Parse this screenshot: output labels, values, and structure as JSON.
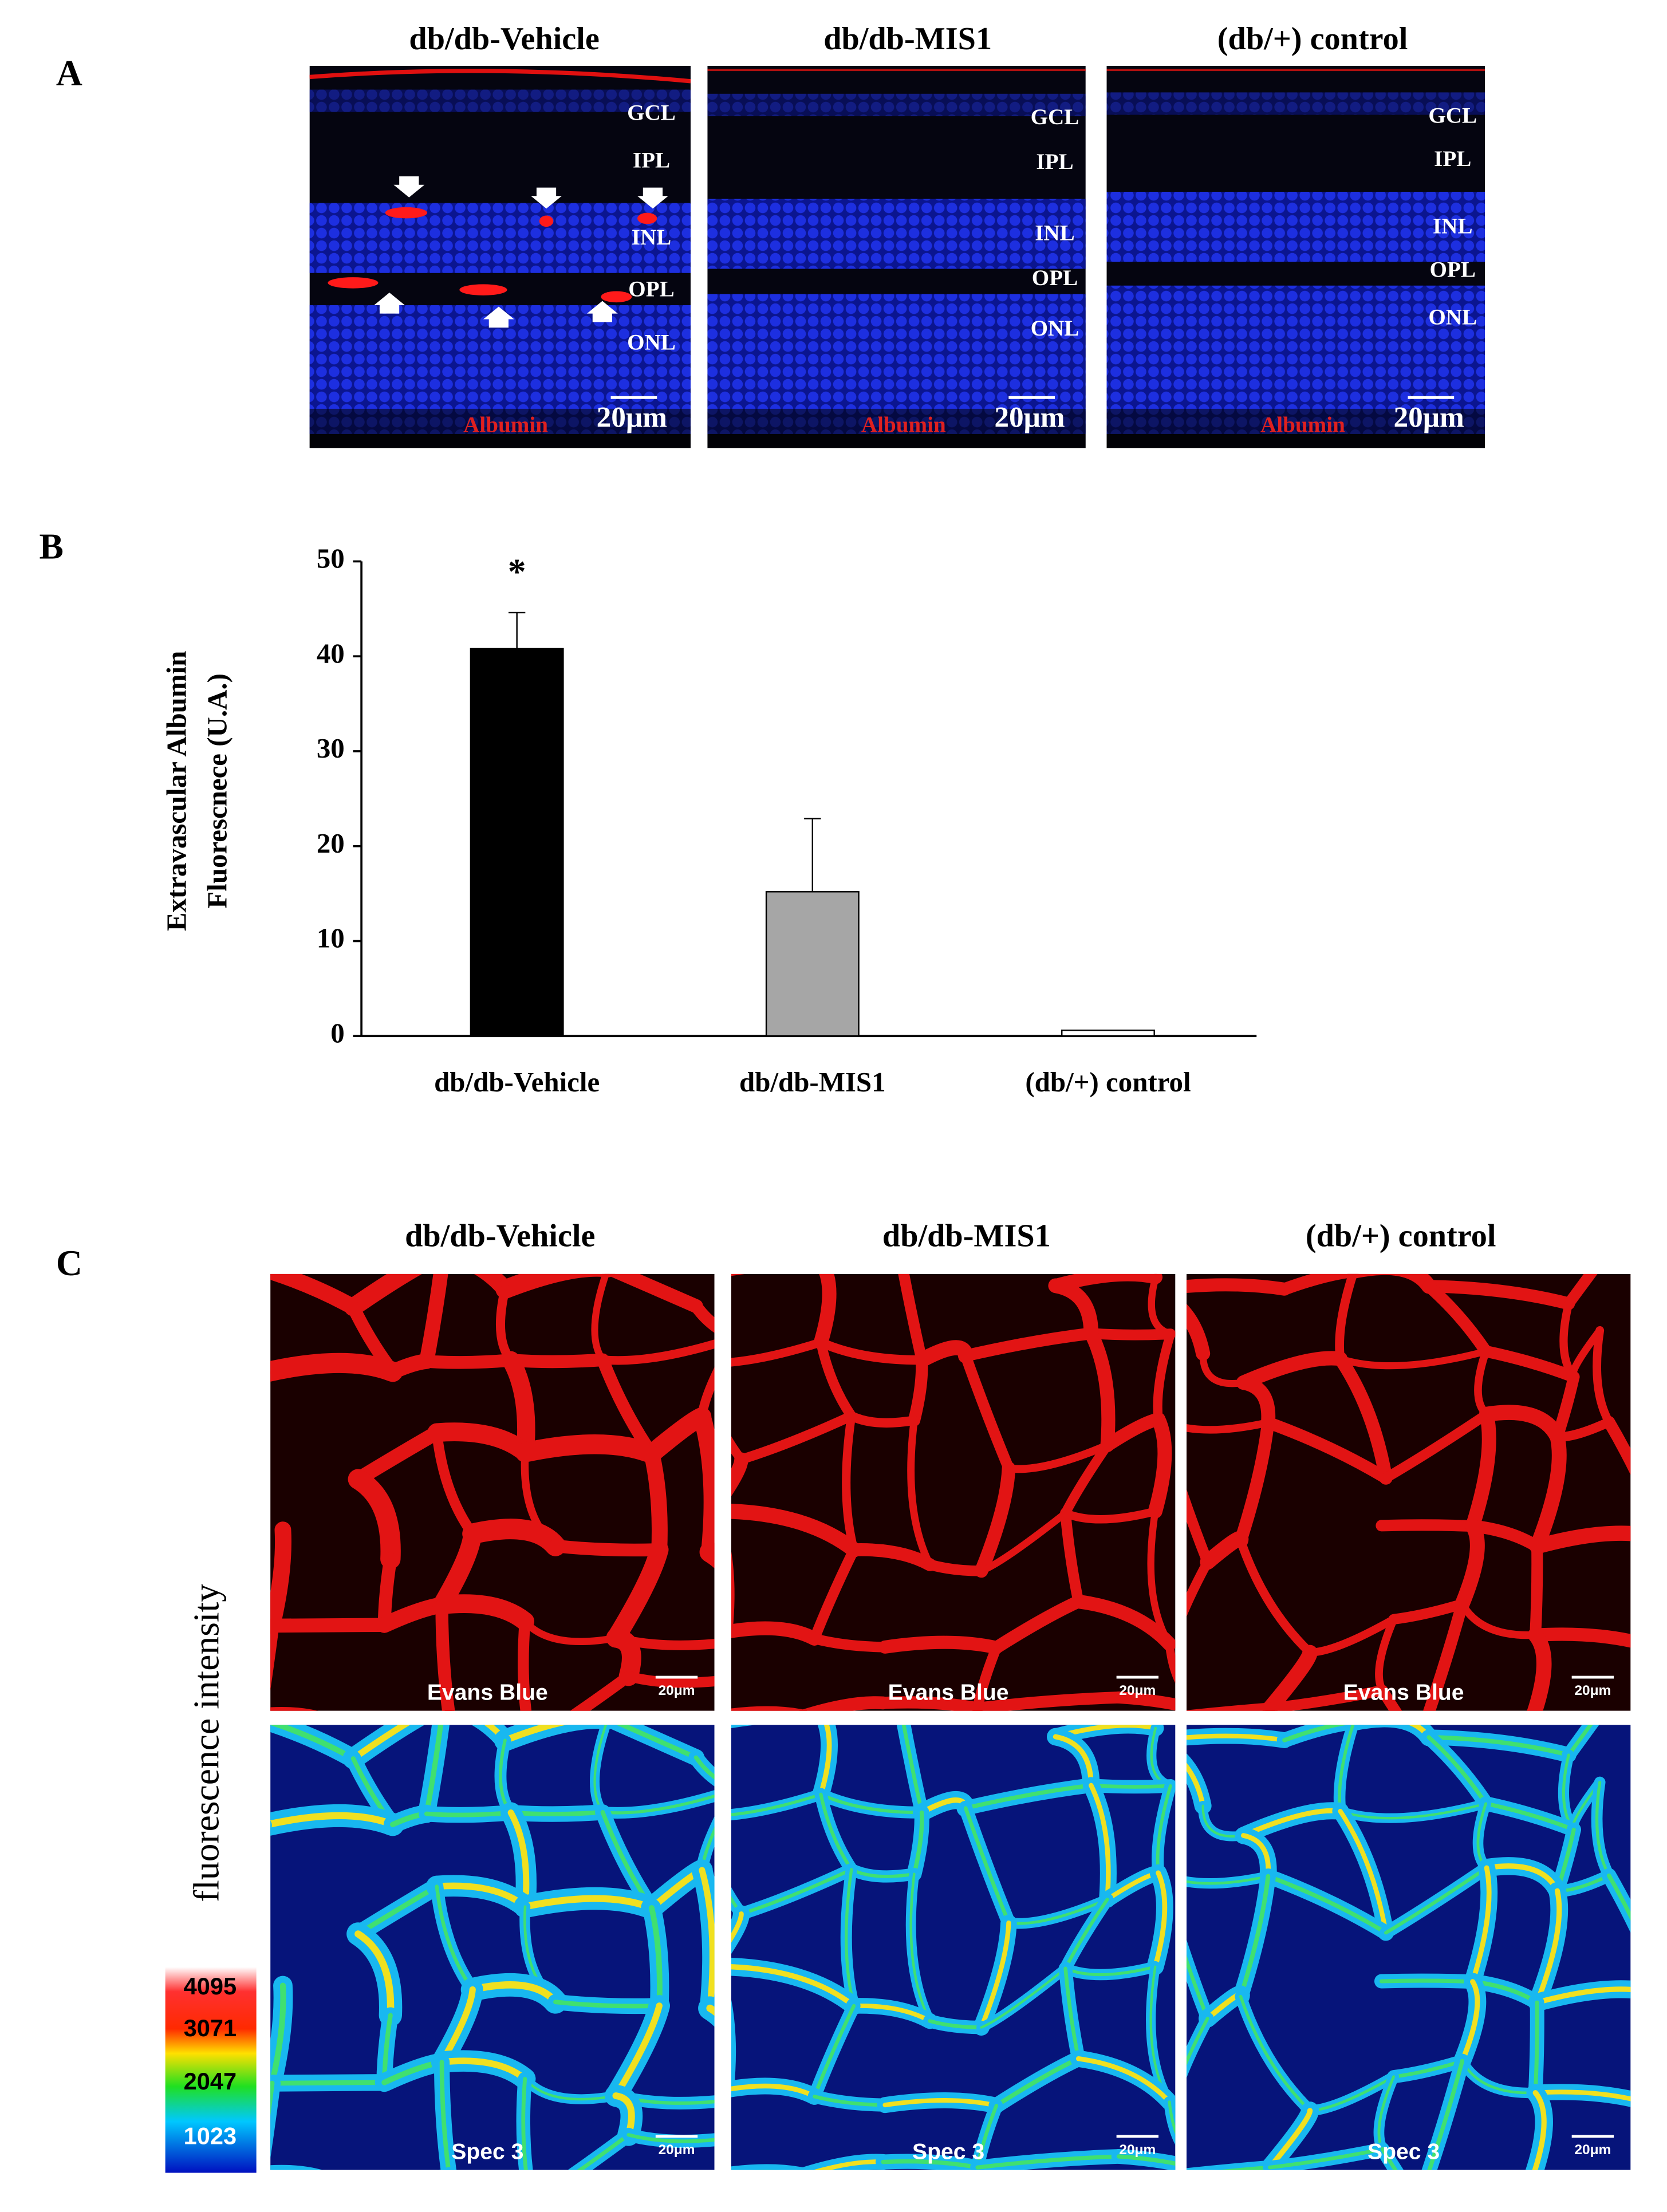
{
  "panel_a": {
    "label": "A",
    "columns": [
      {
        "title": "db/db-Vehicle",
        "layers": [
          "GCL",
          "IPL",
          "INL",
          "OPL",
          "ONL"
        ],
        "stain": "Albumin",
        "scale": "20μm"
      },
      {
        "title": "db/db-MIS1",
        "layers": [
          "GCL",
          "IPL",
          "INL",
          "OPL",
          "ONL"
        ],
        "stain": "Albumin",
        "scale": "20μm"
      },
      {
        "title": "(db/+) control",
        "layers": [
          "GCL",
          "IPL",
          "INL",
          "OPL",
          "ONL"
        ],
        "stain": "Albumin",
        "scale": "20μm"
      }
    ]
  },
  "chart_data": {
    "type": "bar",
    "panel": "B",
    "ylabel": [
      "Extravascular Albumin",
      "Fluorescnece (U.A.)"
    ],
    "categories": [
      "db/db-Vehicle",
      "db/db-MIS1",
      "(db/+) control"
    ],
    "values": [
      40.8,
      15.2,
      0.6
    ],
    "errors": [
      3.8,
      7.7,
      null
    ],
    "colors": [
      "#000000",
      "#a6a6a6",
      "#ffffff"
    ],
    "ylim": [
      0,
      50
    ],
    "yticks": [
      0,
      10,
      20,
      30,
      40,
      50
    ],
    "annotation": "*"
  },
  "panel_c": {
    "label": "C",
    "titles": [
      "db/db-Vehicle",
      "db/db-MIS1",
      "(db/+) control"
    ],
    "top_label": "Evans Blue",
    "bottom_label": "Spec 3",
    "scale": "20μm",
    "colorbar_title": "fluorescence intensity",
    "colorbar_ticks": [
      4095,
      3071,
      2047,
      1023
    ]
  }
}
